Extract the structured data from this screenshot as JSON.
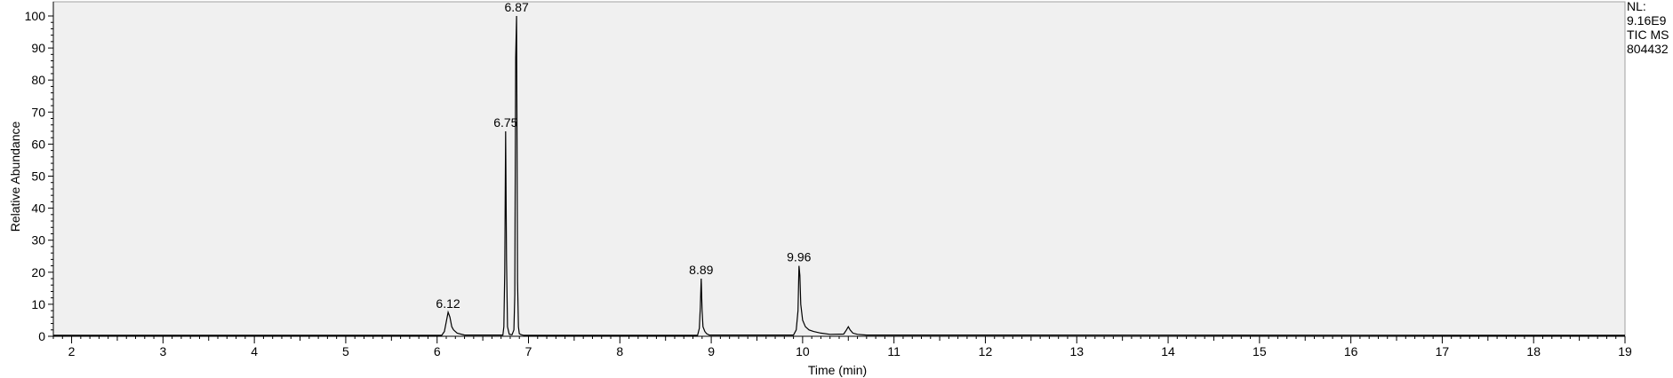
{
  "chart_data": {
    "type": "line",
    "title": "",
    "xlabel": "Time (min)",
    "ylabel": "Relative Abundance",
    "xlim": [
      1.8,
      19.0
    ],
    "ylim": [
      0,
      100
    ],
    "x_ticks": [
      2,
      3,
      4,
      5,
      6,
      7,
      8,
      9,
      10,
      11,
      12,
      13,
      14,
      15,
      16,
      17,
      18,
      19
    ],
    "y_ticks": [
      0,
      10,
      20,
      30,
      40,
      50,
      60,
      70,
      80,
      90,
      100
    ],
    "grid": false,
    "info": [
      "NL:",
      "9.16E9",
      "TIC  MS",
      "804432"
    ],
    "peak_labels": [
      {
        "x": 6.12,
        "y": 7.5,
        "label": "6.12"
      },
      {
        "x": 6.75,
        "y": 64,
        "label": "6.75"
      },
      {
        "x": 6.87,
        "y": 100,
        "label": "6.87"
      },
      {
        "x": 8.89,
        "y": 18,
        "label": "8.89"
      },
      {
        "x": 9.96,
        "y": 22,
        "label": "9.96"
      }
    ],
    "series": [
      {
        "color": "#000000",
        "x": [
          1.8,
          6.05,
          6.08,
          6.1,
          6.12,
          6.14,
          6.16,
          6.18,
          6.22,
          6.3,
          6.72,
          6.73,
          6.74,
          6.75,
          6.76,
          6.77,
          6.79,
          6.82,
          6.84,
          6.85,
          6.86,
          6.87,
          6.88,
          6.89,
          6.9,
          6.92,
          6.95,
          8.85,
          8.87,
          8.88,
          8.89,
          8.9,
          8.91,
          8.93,
          8.95,
          8.98,
          9.9,
          9.93,
          9.95,
          9.96,
          9.97,
          9.98,
          10.0,
          10.03,
          10.07,
          10.12,
          10.2,
          10.3,
          10.45,
          10.48,
          10.5,
          10.52,
          10.55,
          10.6,
          10.7,
          19.0
        ],
        "y": [
          0.3,
          0.3,
          1.5,
          4.5,
          7.5,
          6.0,
          3.0,
          2.0,
          1.0,
          0.4,
          0.4,
          3.0,
          20.0,
          64.0,
          24.0,
          3.0,
          0.6,
          0.5,
          2.0,
          13.0,
          87.0,
          100.0,
          17.0,
          3.0,
          0.8,
          0.5,
          0.3,
          0.3,
          2.5,
          9.0,
          18.0,
          8.0,
          3.0,
          1.5,
          0.8,
          0.4,
          0.4,
          2.0,
          8.0,
          22.0,
          19.0,
          10.0,
          5.0,
          3.0,
          2.0,
          1.5,
          1.0,
          0.6,
          0.7,
          2.0,
          3.0,
          2.0,
          1.0,
          0.6,
          0.4,
          0.3
        ]
      }
    ]
  }
}
